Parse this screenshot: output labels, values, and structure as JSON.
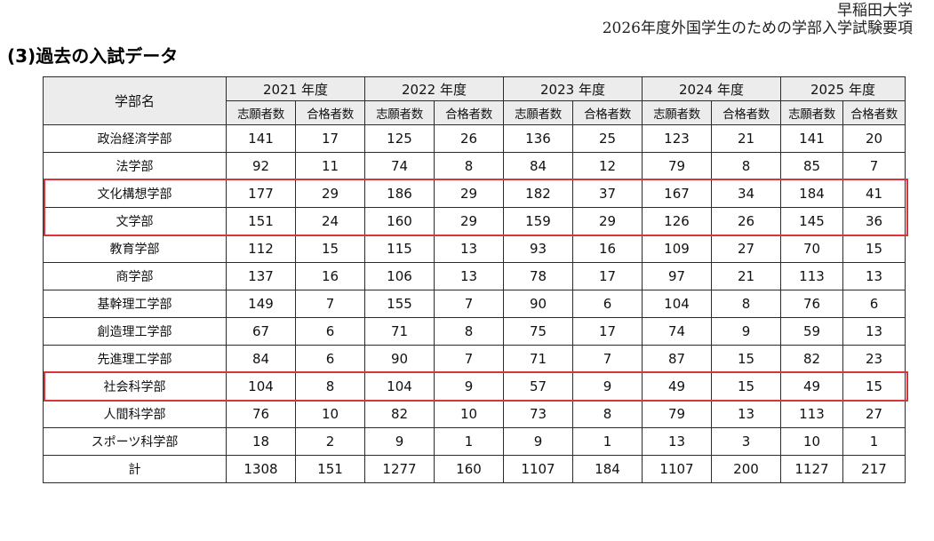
{
  "header": {
    "university": "早稲田大学",
    "document_title": "2026年度外国学生のための学部入学試験要項"
  },
  "section": {
    "title": "(3)過去の入試データ"
  },
  "table": {
    "dept_header": "学部名",
    "years": [
      "2021 年度",
      "2022 年度",
      "2023 年度",
      "2024 年度",
      "2025 年度"
    ],
    "sub_headers": [
      "志願者数",
      "合格者数"
    ],
    "rows": [
      {
        "dept": "政治経済学部",
        "values": [
          "141",
          "17",
          "125",
          "26",
          "136",
          "25",
          "123",
          "21",
          "141",
          "20"
        ]
      },
      {
        "dept": "法学部",
        "values": [
          "92",
          "11",
          "74",
          "8",
          "84",
          "12",
          "79",
          "8",
          "85",
          "7"
        ]
      },
      {
        "dept": "文化構想学部",
        "values": [
          "177",
          "29",
          "186",
          "29",
          "182",
          "37",
          "167",
          "34",
          "184",
          "41"
        ]
      },
      {
        "dept": "文学部",
        "values": [
          "151",
          "24",
          "160",
          "29",
          "159",
          "29",
          "126",
          "26",
          "145",
          "36"
        ]
      },
      {
        "dept": "教育学部",
        "values": [
          "112",
          "15",
          "115",
          "13",
          "93",
          "16",
          "109",
          "27",
          "70",
          "15"
        ]
      },
      {
        "dept": "商学部",
        "values": [
          "137",
          "16",
          "106",
          "13",
          "78",
          "17",
          "97",
          "21",
          "113",
          "13"
        ]
      },
      {
        "dept": "基幹理工学部",
        "values": [
          "149",
          "7",
          "155",
          "7",
          "90",
          "6",
          "104",
          "8",
          "76",
          "6"
        ]
      },
      {
        "dept": "創造理工学部",
        "values": [
          "67",
          "6",
          "71",
          "8",
          "75",
          "17",
          "74",
          "9",
          "59",
          "13"
        ]
      },
      {
        "dept": "先進理工学部",
        "values": [
          "84",
          "6",
          "90",
          "7",
          "71",
          "7",
          "87",
          "15",
          "82",
          "23"
        ]
      },
      {
        "dept": "社会科学部",
        "values": [
          "104",
          "8",
          "104",
          "9",
          "57",
          "9",
          "49",
          "15",
          "49",
          "15"
        ]
      },
      {
        "dept": "人間科学部",
        "values": [
          "76",
          "10",
          "82",
          "10",
          "73",
          "8",
          "79",
          "13",
          "113",
          "27"
        ]
      },
      {
        "dept": "スポーツ科学部",
        "values": [
          "18",
          "2",
          "9",
          "1",
          "9",
          "1",
          "13",
          "3",
          "10",
          "1"
        ]
      },
      {
        "dept": "計",
        "values": [
          "1308",
          "151",
          "1277",
          "160",
          "1107",
          "184",
          "1107",
          "200",
          "1127",
          "217"
        ]
      }
    ]
  },
  "highlight": {
    "color": "#d9343a",
    "highlighted_depts": [
      "文化構想学部",
      "文学部",
      "社会科学部"
    ]
  }
}
